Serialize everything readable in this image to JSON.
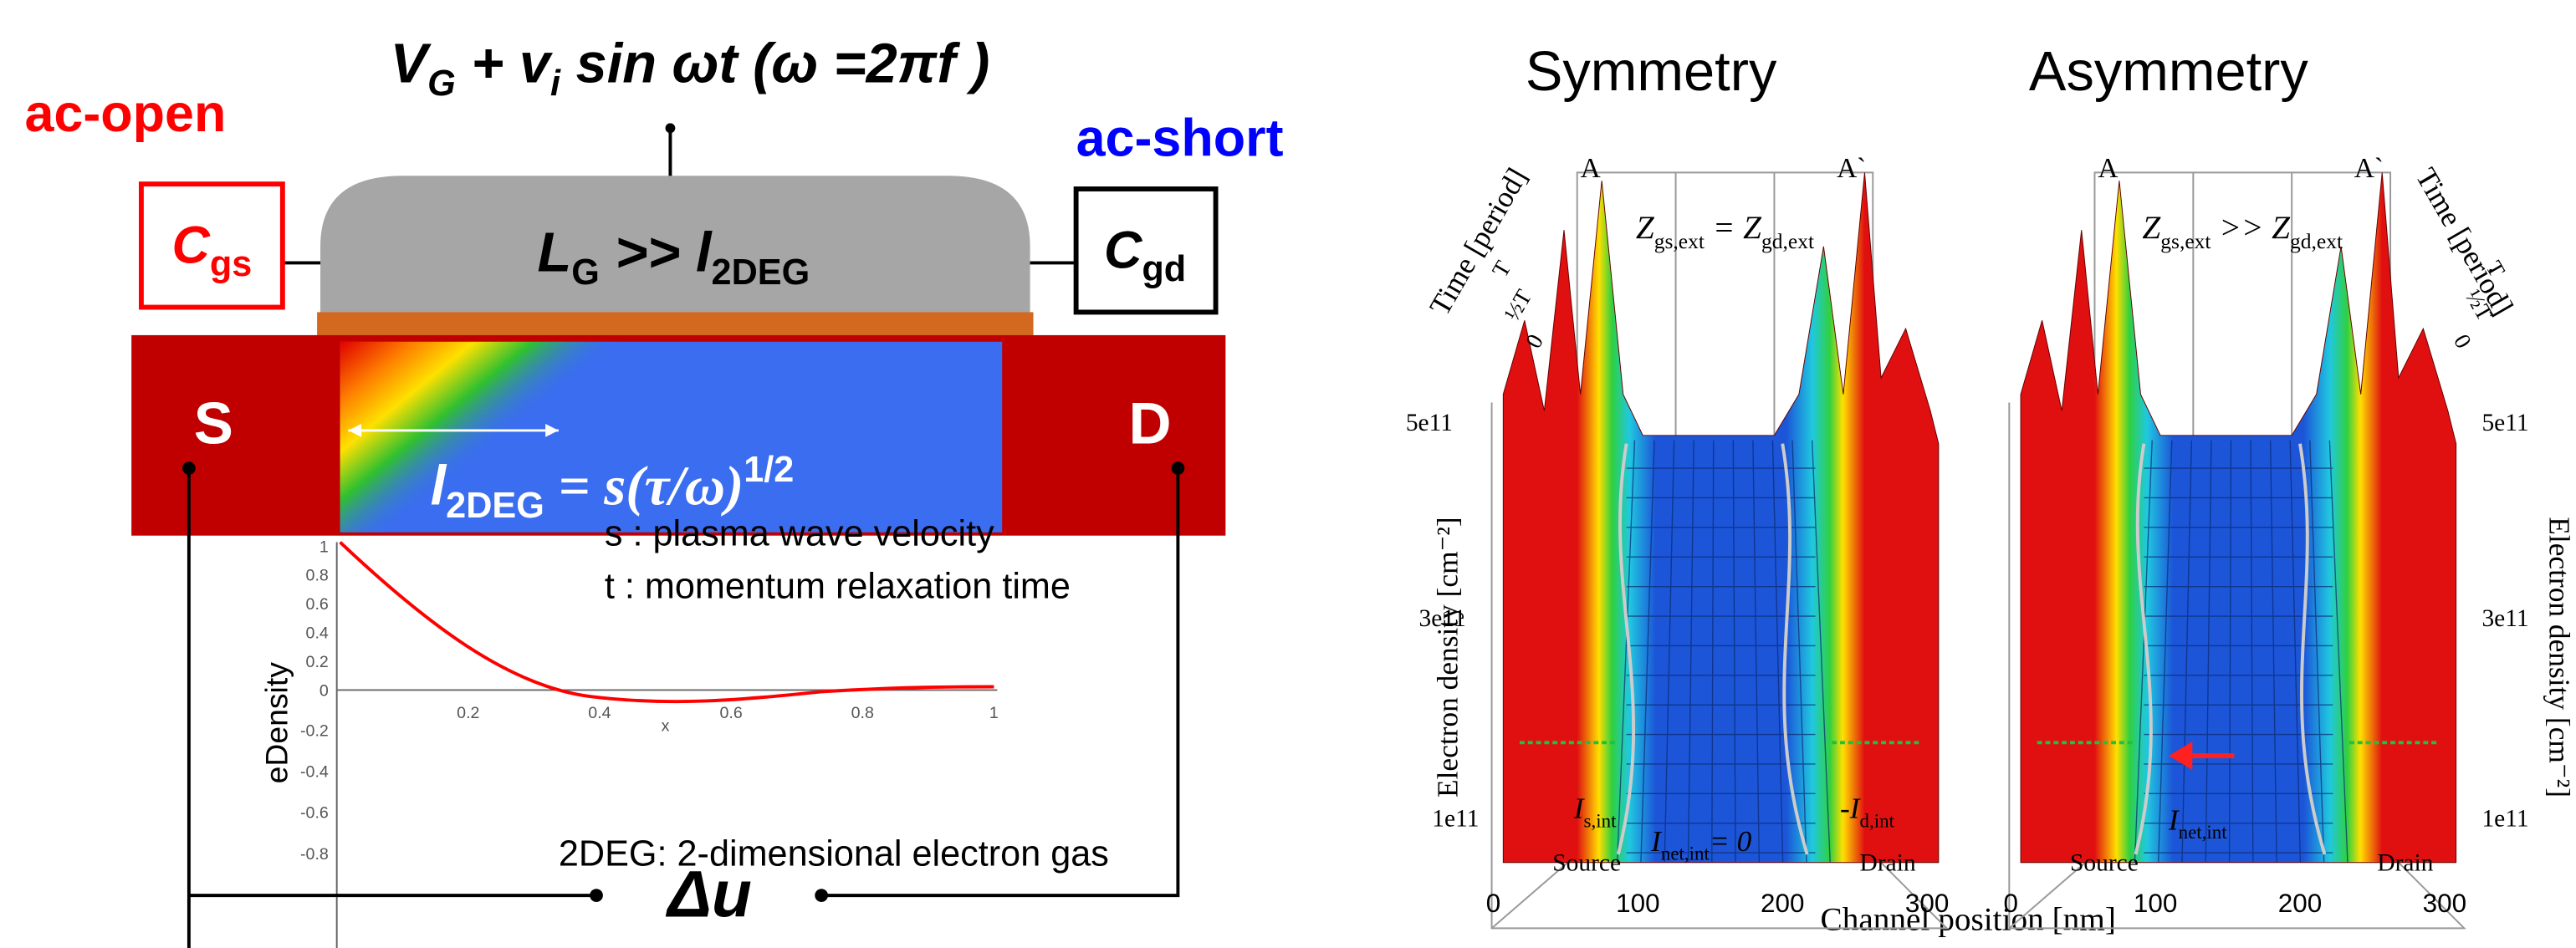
{
  "left": {
    "gate_voltage": [
      "V",
      "G",
      " + v",
      "i",
      " sin ωt (ω =2πf )"
    ],
    "ac_open": "ac-open",
    "ac_short": "ac-short",
    "c_gs": [
      "C",
      "gs"
    ],
    "c_gd": [
      "C",
      "gd"
    ],
    "gate": [
      "L",
      "G",
      " >> l",
      "2DEG"
    ],
    "source": "S",
    "drain": "D",
    "length": [
      "l",
      "2DEG",
      " = s(τ/ω)",
      "1/2"
    ],
    "notes": [
      "s : plasma wave velocity",
      "t : momentum relaxation time"
    ],
    "footnote": "2DEG: 2-dimensional electron gas",
    "delta": "Δu",
    "inset": {
      "y_label": "eDensity",
      "x_label": "x",
      "yticks": [
        "1",
        "0.8",
        "0.6",
        "0.4",
        "0.2",
        "0",
        "-0.2",
        "-0.4",
        "-0.6",
        "-0.8"
      ],
      "xticks": [
        "0.2",
        "0.4",
        "0.6",
        "0.8",
        "1"
      ]
    }
  },
  "right": {
    "channel_label": "Channel position [nm]",
    "panels": [
      {
        "title": "Symmetry",
        "corners": [
          "A",
          "A`"
        ],
        "impedance": [
          "Z",
          "gs,ext",
          " = ",
          "Z",
          "gd,ext"
        ],
        "time_label": "Time [period]",
        "time_ticks": [
          "0",
          "½T",
          "T"
        ],
        "density_label": "Electron density [cm⁻²]",
        "density_ticks": [
          "5e11",
          "3e11",
          "1e11"
        ],
        "xticks": [
          "0",
          "100",
          "200",
          "300"
        ],
        "source": "Source",
        "drain": "Drain",
        "currents": [
          [
            "I",
            "s,int"
          ],
          [
            "I",
            "net,int",
            "= 0"
          ],
          [
            "-I",
            "d,int"
          ]
        ]
      },
      {
        "title": "Asymmetry",
        "corners": [
          "A",
          "A`"
        ],
        "impedance": [
          "Z",
          "gs,ext",
          " >> ",
          "Z",
          "gd,ext"
        ],
        "time_label": "Time [period]",
        "time_ticks": [
          "0",
          "½T",
          "T"
        ],
        "density_label": "Electron density [cm⁻²]",
        "density_ticks": [
          "5e11",
          "3e11",
          "1e11"
        ],
        "xticks": [
          "0",
          "100",
          "200",
          "300"
        ],
        "source": "Source",
        "drain": "Drain",
        "currents": [
          [
            "I",
            "net,int"
          ]
        ]
      }
    ]
  }
}
